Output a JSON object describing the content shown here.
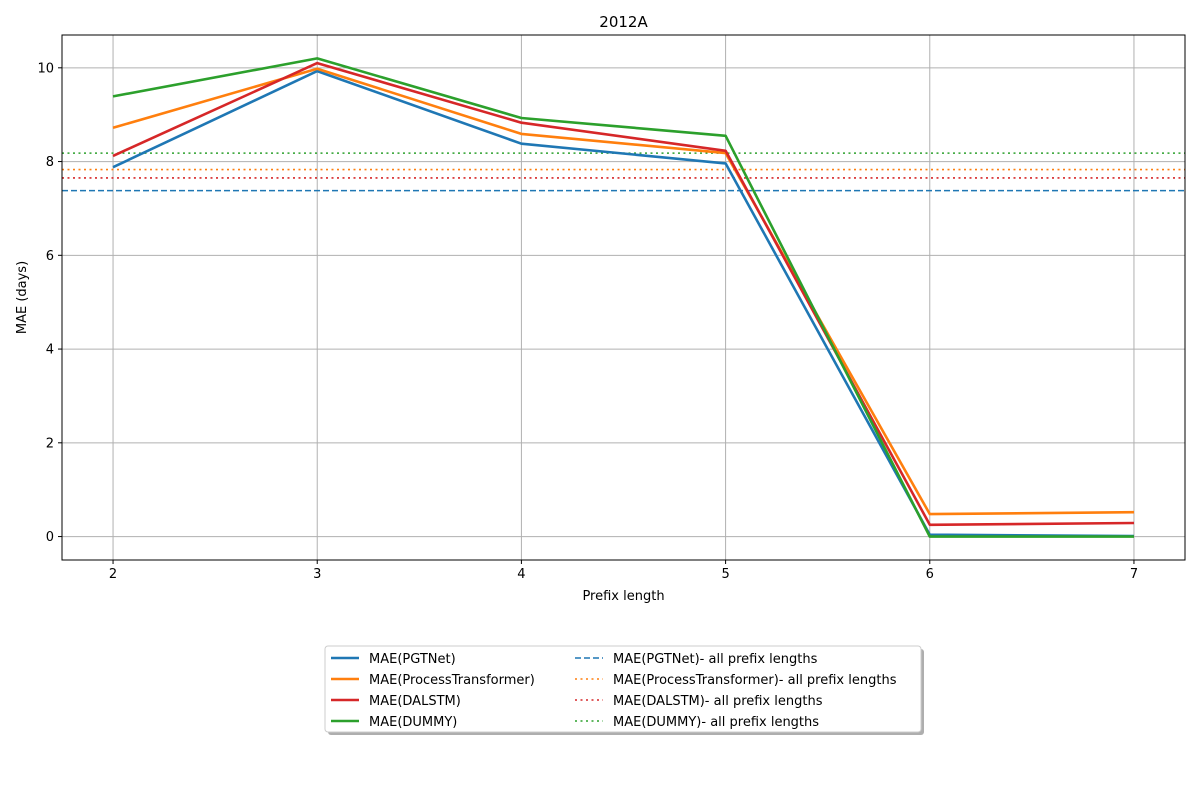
{
  "chart_data": {
    "type": "line",
    "title": "2012A",
    "xlabel": "Prefix length",
    "ylabel": "MAE (days)",
    "x": [
      2,
      3,
      4,
      5,
      6,
      7
    ],
    "xlim": [
      1.75,
      7.25
    ],
    "ylim": [
      -0.5,
      10.7
    ],
    "xticks": [
      "2",
      "3",
      "4",
      "5",
      "6",
      "7"
    ],
    "yticks": [
      "0",
      "2",
      "4",
      "6",
      "8",
      "10"
    ],
    "grid": true,
    "legend_position": "bottom-center",
    "series": [
      {
        "name": "MAE(PGTNet)",
        "color": "#1f77b4",
        "style": "solid",
        "values": [
          7.88,
          9.93,
          8.38,
          7.96,
          0.04,
          0.01
        ]
      },
      {
        "name": "MAE(ProcessTransformer)",
        "color": "#ff7f0e",
        "style": "solid",
        "values": [
          8.72,
          9.98,
          8.59,
          8.18,
          0.48,
          0.52
        ]
      },
      {
        "name": "MAE(DALSTM)",
        "color": "#d62728",
        "style": "solid",
        "values": [
          8.12,
          10.1,
          8.83,
          8.23,
          0.25,
          0.29
        ]
      },
      {
        "name": "MAE(DUMMY)",
        "color": "#2ca02c",
        "style": "solid",
        "values": [
          9.39,
          10.2,
          8.93,
          8.55,
          0.0,
          0.0
        ]
      }
    ],
    "reference_lines": [
      {
        "name": "MAE(PGTNet)- all prefix lengths",
        "color": "#1f77b4",
        "style": "dashed",
        "value": 7.38
      },
      {
        "name": "MAE(ProcessTransformer)- all prefix lengths",
        "color": "#ff7f0e",
        "style": "dotted",
        "value": 7.83
      },
      {
        "name": "MAE(DALSTM)- all prefix lengths",
        "color": "#d62728",
        "style": "dotted",
        "value": 7.65
      },
      {
        "name": "MAE(DUMMY)- all prefix lengths",
        "color": "#2ca02c",
        "style": "dotted",
        "value": 8.18
      }
    ]
  }
}
